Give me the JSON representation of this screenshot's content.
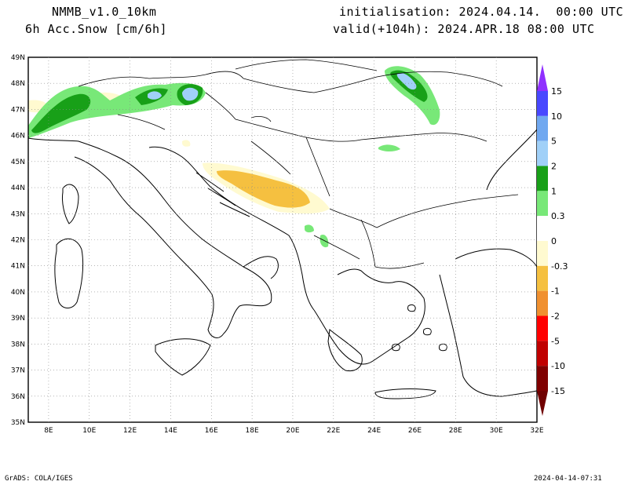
{
  "header": {
    "model": "NMMB_v1.0_10km",
    "field": "6h Acc.Snow [cm/6h]",
    "init": "initialisation: 2024.04.14.  00:00 UTC",
    "valid": "valid(+104h): 2024.APR.18 08:00 UTC"
  },
  "map": {
    "lat_labels": [
      "49N",
      "48N",
      "47N",
      "46N",
      "45N",
      "44N",
      "43N",
      "42N",
      "41N",
      "40N",
      "39N",
      "38N",
      "37N",
      "36N",
      "35N"
    ],
    "lat_values": [
      49,
      48,
      47,
      46,
      45,
      44,
      43,
      42,
      41,
      40,
      39,
      38,
      37,
      36,
      35
    ],
    "lon_labels": [
      "8E",
      "10E",
      "12E",
      "14E",
      "16E",
      "18E",
      "20E",
      "22E",
      "24E",
      "26E",
      "28E",
      "30E",
      "32E"
    ],
    "lon_values": [
      8,
      10,
      12,
      14,
      16,
      18,
      20,
      22,
      24,
      26,
      28,
      30,
      32
    ],
    "lon_range": [
      7,
      32
    ],
    "lat_range": [
      35,
      49
    ],
    "grid": "dotted"
  },
  "legend": {
    "labels": [
      "15",
      "10",
      "5",
      "2",
      "1",
      "0.3",
      "0",
      "-0.3",
      "-1",
      "-2",
      "-5",
      "-10",
      "-15"
    ],
    "colors": [
      "#4848ff",
      "#70a8f0",
      "#a0d0f8",
      "#18a018",
      "#78e878",
      "#ffffff",
      "#fffad0",
      "#f5c040",
      "#f09030",
      "#ff0000",
      "#c00000",
      "#800000"
    ],
    "top_arrow_color": "#9030ff",
    "bottom_arrow_color": "#700000"
  },
  "footer": {
    "left": "GrADS: COLA/IGES",
    "right": "2024-04-14-07:31"
  }
}
